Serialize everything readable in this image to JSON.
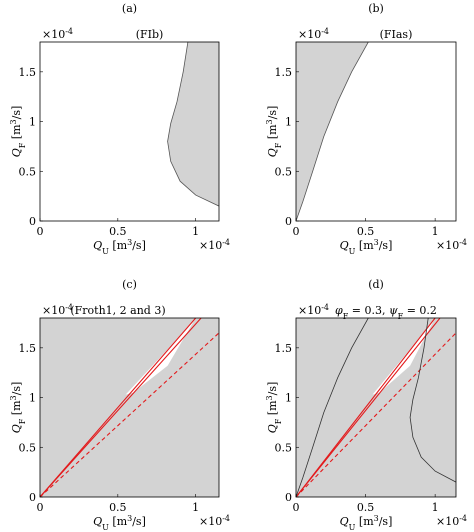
{
  "chart_data": [
    {
      "type": "area",
      "panel": "(a)",
      "title": "(FIb)",
      "xlabel": "Q_U [m^3/s]",
      "ylabel": "Q_F [m^3/s]",
      "xlim": [
        0,
        0.000115
      ],
      "ylim": [
        0,
        0.00018
      ],
      "x_ticks": [
        "0",
        "0.5",
        "1"
      ],
      "y_ticks": [
        "0",
        "0.5",
        "1",
        "1.5"
      ],
      "x_exponent": "×10^-4",
      "y_exponent": "×10^-4",
      "fill": "#d3d3d3",
      "region_boundary": {
        "x": [
          9.5e-05,
          9.2e-05,
          8.8e-05,
          8.4e-05,
          8.2e-05,
          8.4e-05,
          9e-05,
          0.0001,
          0.000115
        ],
        "y": [
          0.00018,
          0.00015,
          0.00012,
          9.8e-05,
          8e-05,
          6e-05,
          4e-05,
          2.6e-05,
          1.5e-05
        ]
      },
      "region_side": "right"
    },
    {
      "type": "area",
      "panel": "(b)",
      "title": "(FIas)",
      "xlabel": "Q_U [m^3/s]",
      "ylabel": "Q_F [m^3/s]",
      "xlim": [
        0,
        0.000115
      ],
      "ylim": [
        0,
        0.00018
      ],
      "x_ticks": [
        "0",
        "0.5",
        "1"
      ],
      "y_ticks": [
        "0",
        "0.5",
        "1",
        "1.5"
      ],
      "x_exponent": "×10^-4",
      "y_exponent": "×10^-4",
      "fill": "#d3d3d3",
      "region_boundary": {
        "x": [
          0,
          5e-06,
          1.2e-05,
          2e-05,
          3e-05,
          4e-05,
          5.2e-05
        ],
        "y": [
          0,
          2e-05,
          5e-05,
          8.5e-05,
          0.00012,
          0.00015,
          0.00018
        ]
      },
      "region_side": "left"
    },
    {
      "type": "area",
      "panel": "(c)",
      "title": "(Froth1, 2 and 3)",
      "xlabel": "Q_U [m^3/s]",
      "ylabel": "Q_F [m^3/s]",
      "xlim": [
        0,
        0.000115
      ],
      "ylim": [
        0,
        0.00018
      ],
      "x_ticks": [
        "0",
        "0.5",
        "1"
      ],
      "y_ticks": [
        "0",
        "0.5",
        "1",
        "1.5"
      ],
      "x_exponent": "×10^-4",
      "y_exponent": "×10^-4",
      "fill": "#d3d3d3",
      "white_wedge": {
        "x": [
          5.5e-05,
          8e-05,
          0.0001,
          8.2e-05,
          6e-05
        ],
        "y": [
          0.000103,
          0.000145,
          0.00018,
          0.000132,
          0.000105
        ]
      },
      "lines": [
        {
          "x": [
            0,
            0.0001035
          ],
          "y": [
            0,
            0.00018
          ],
          "color": "#e31a1c",
          "style": "solid"
        },
        {
          "x": [
            0,
            0.0001
          ],
          "y": [
            0,
            0.00018
          ],
          "color": "#e31a1c",
          "style": "solid"
        },
        {
          "x": [
            0,
            0.000115
          ],
          "y": [
            0,
            0.000165
          ],
          "color": "#e31a1c",
          "style": "dashed"
        }
      ]
    },
    {
      "type": "area",
      "panel": "(d)",
      "title": "φ_F = 0.3, ψ_F = 0.2",
      "xlabel": "Q_U [m^3/s]",
      "ylabel": "Q_F [m^3/s]",
      "xlim": [
        0,
        0.000115
      ],
      "ylim": [
        0,
        0.00018
      ],
      "x_ticks": [
        "0",
        "0.5",
        "1"
      ],
      "y_ticks": [
        "0",
        "0.5",
        "1",
        "1.5"
      ],
      "x_exponent": "×10^-4",
      "y_exponent": "×10^-4",
      "fill": "#d3d3d3",
      "white_wedge": {
        "x": [
          5.5e-05,
          8e-05,
          0.0001,
          8.2e-05,
          6e-05
        ],
        "y": [
          0.000103,
          0.000145,
          0.00018,
          0.000132,
          0.000105
        ]
      },
      "lines": [
        {
          "x": [
            0,
            0.0001035
          ],
          "y": [
            0,
            0.00018
          ],
          "color": "#e31a1c",
          "style": "solid"
        },
        {
          "x": [
            0,
            0.0001
          ],
          "y": [
            0,
            0.00018
          ],
          "color": "#e31a1c",
          "style": "solid"
        },
        {
          "x": [
            0,
            0.000115
          ],
          "y": [
            0,
            0.000165
          ],
          "color": "#e31a1c",
          "style": "dashed"
        },
        {
          "x": [
            0,
            5e-06,
            1.2e-05,
            2e-05,
            3e-05,
            4e-05,
            5.2e-05
          ],
          "y": [
            0,
            2e-05,
            5e-05,
            8.5e-05,
            0.00012,
            0.00015,
            0.00018
          ],
          "color": "#333333",
          "style": "solid"
        },
        {
          "x": [
            9.5e-05,
            9.2e-05,
            8.8e-05,
            8.4e-05,
            8.2e-05,
            8.4e-05,
            9e-05,
            0.0001,
            0.000115
          ],
          "y": [
            0.00018,
            0.00015,
            0.00012,
            9.8e-05,
            8e-05,
            6e-05,
            4e-05,
            2.6e-05,
            1.5e-05
          ],
          "color": "#333333",
          "style": "solid"
        }
      ]
    }
  ]
}
